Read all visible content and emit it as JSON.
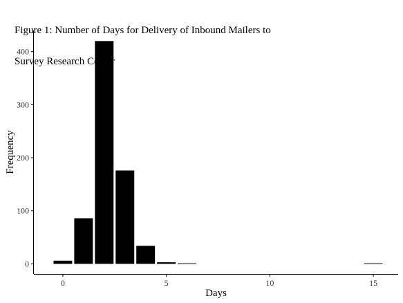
{
  "chart_data": {
    "type": "bar",
    "title_lines": [
      "Figure 1: Number of Days for Delivery of Inbound Mailers to",
      "Survey Research Center"
    ],
    "xlabel": "Days",
    "ylabel": "Frequency",
    "x": [
      0,
      1,
      2,
      3,
      4,
      5,
      6,
      15
    ],
    "values": [
      6,
      86,
      420,
      176,
      34,
      3,
      1,
      1
    ],
    "xlim": [
      -1.4,
      16.2
    ],
    "ylim": [
      -19,
      440
    ],
    "x_ticks": [
      0,
      5,
      10,
      15
    ],
    "x_tick_labels": [
      "0",
      "5",
      "10",
      "15"
    ],
    "y_ticks": [
      0,
      100,
      200,
      300,
      400
    ],
    "y_tick_labels": [
      "0",
      "100",
      "200",
      "300",
      "400"
    ],
    "bar_color": "#000000",
    "grid": false,
    "legend": "none"
  }
}
